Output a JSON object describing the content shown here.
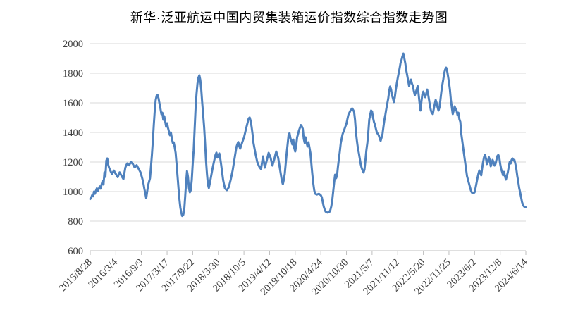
{
  "title": "新华·泛亚航运中国内贸集装箱运价指数综合指数走势图",
  "chart_data": {
    "type": "line",
    "title": "新华·泛亚航运中国内贸集装箱运价指数综合指数走势图",
    "xlabel": "",
    "ylabel": "",
    "legend": "none",
    "grid": true,
    "ylim": [
      600,
      2000
    ],
    "y_ticks": [
      600,
      800,
      1000,
      1200,
      1400,
      1600,
      1800,
      2000
    ],
    "x_tick_interval_weeks": 27,
    "x_tick_labels": [
      "2015/8/28",
      "2016/3/4",
      "2016/9/9",
      "2017/3/17",
      "2017/9/22",
      "2018/3/30",
      "2018/10/5",
      "2019/4/12",
      "2019/10/18",
      "2020/4/24",
      "2020/10/30",
      "2021/5/7",
      "2021/11/12",
      "2022/5/20",
      "2022/11/25",
      "2023/6/2",
      "2023/12/8",
      "2024/6/14"
    ],
    "colors": {
      "line": "#4F81BD",
      "gridline": "#D9D9D9",
      "axis": "#BFBFBF",
      "label": "#404040",
      "title": "#000000"
    },
    "values_weekly": [
      950,
      958,
      975,
      968,
      1000,
      985,
      1005,
      1022,
      1003,
      1018,
      1035,
      1020,
      1048,
      1070,
      1048,
      1130,
      1100,
      1210,
      1224,
      1180,
      1160,
      1145,
      1130,
      1118,
      1132,
      1142,
      1128,
      1119,
      1108,
      1098,
      1115,
      1130,
      1118,
      1107,
      1095,
      1085,
      1125,
      1162,
      1178,
      1190,
      1183,
      1178,
      1190,
      1200,
      1193,
      1186,
      1172,
      1164,
      1172,
      1178,
      1166,
      1155,
      1142,
      1130,
      1108,
      1085,
      1058,
      1020,
      990,
      955,
      1000,
      1043,
      1067,
      1090,
      1167,
      1248,
      1343,
      1452,
      1548,
      1619,
      1648,
      1652,
      1630,
      1595,
      1562,
      1524,
      1533,
      1486,
      1510,
      1475,
      1438,
      1462,
      1430,
      1405,
      1381,
      1400,
      1362,
      1329,
      1333,
      1300,
      1262,
      1186,
      1105,
      1024,
      948,
      890,
      857,
      835,
      843,
      870,
      960,
      1060,
      1138,
      1100,
      1025,
      995,
      1010,
      1080,
      1188,
      1280,
      1420,
      1560,
      1660,
      1730,
      1770,
      1786,
      1755,
      1690,
      1600,
      1520,
      1438,
      1330,
      1210,
      1120,
      1050,
      1024,
      1055,
      1090,
      1125,
      1160,
      1190,
      1220,
      1248,
      1263,
      1230,
      1245,
      1258,
      1225,
      1180,
      1130,
      1080,
      1048,
      1022,
      1015,
      1010,
      1018,
      1030,
      1055,
      1080,
      1110,
      1140,
      1180,
      1220,
      1260,
      1300,
      1320,
      1335,
      1310,
      1290,
      1310,
      1330,
      1348,
      1365,
      1392,
      1420,
      1445,
      1470,
      1495,
      1501,
      1480,
      1440,
      1390,
      1330,
      1295,
      1260,
      1230,
      1200,
      1185,
      1170,
      1160,
      1152,
      1195,
      1238,
      1200,
      1162,
      1186,
      1210,
      1236,
      1262,
      1246,
      1230,
      1203,
      1176,
      1198,
      1220,
      1246,
      1271,
      1250,
      1230,
      1190,
      1150,
      1110,
      1071,
      1050,
      1080,
      1120,
      1190,
      1260,
      1320,
      1381,
      1395,
      1360,
      1343,
      1319,
      1352,
      1295,
      1271,
      1310,
      1367,
      1390,
      1414,
      1432,
      1450,
      1440,
      1424,
      1357,
      1329,
      1367,
      1329,
      1305,
      1333,
      1298,
      1262,
      1190,
      1119,
      1057,
      1010,
      986,
      982,
      980,
      983,
      985,
      980,
      975,
      962,
      930,
      900,
      880,
      865,
      860,
      858,
      860,
      862,
      875,
      900,
      940,
      1000,
      1060,
      1114,
      1090,
      1105,
      1167,
      1220,
      1271,
      1329,
      1360,
      1390,
      1407,
      1424,
      1442,
      1460,
      1490,
      1519,
      1532,
      1545,
      1554,
      1562,
      1552,
      1540,
      1486,
      1400,
      1343,
      1295,
      1262,
      1224,
      1186,
      1160,
      1143,
      1129,
      1150,
      1214,
      1280,
      1329,
      1400,
      1486,
      1520,
      1548,
      1540,
      1500,
      1470,
      1452,
      1425,
      1400,
      1390,
      1381,
      1360,
      1343,
      1365,
      1390,
      1440,
      1486,
      1520,
      1560,
      1595,
      1629,
      1680,
      1710,
      1690,
      1652,
      1629,
      1605,
      1640,
      1690,
      1730,
      1767,
      1800,
      1833,
      1870,
      1890,
      1915,
      1933,
      1900,
      1867,
      1820,
      1786,
      1750,
      1714,
      1740,
      1757,
      1730,
      1714,
      1680,
      1652,
      1670,
      1690,
      1714,
      1660,
      1600,
      1548,
      1610,
      1660,
      1676,
      1655,
      1638,
      1660,
      1690,
      1660,
      1620,
      1580,
      1548,
      1530,
      1524,
      1560,
      1590,
      1620,
      1600,
      1570,
      1548,
      1570,
      1620,
      1676,
      1720,
      1757,
      1800,
      1825,
      1838,
      1820,
      1781,
      1740,
      1690,
      1620,
      1571,
      1524,
      1548,
      1576,
      1560,
      1548,
      1519,
      1533,
      1490,
      1471,
      1390,
      1343,
      1295,
      1248,
      1200,
      1152,
      1105,
      1081,
      1057,
      1033,
      1010,
      995,
      988,
      990,
      995,
      1024,
      1057,
      1090,
      1119,
      1143,
      1125,
      1110,
      1160,
      1200,
      1233,
      1248,
      1224,
      1186,
      1200,
      1233,
      1214,
      1171,
      1190,
      1214,
      1200,
      1176,
      1186,
      1214,
      1240,
      1248,
      1233,
      1186,
      1152,
      1133,
      1110,
      1133,
      1105,
      1081,
      1105,
      1130,
      1167,
      1200,
      1190,
      1214,
      1224,
      1210,
      1214,
      1186,
      1152,
      1105,
      1067,
      1024,
      995,
      962,
      929,
      910,
      900,
      895,
      893
    ]
  }
}
